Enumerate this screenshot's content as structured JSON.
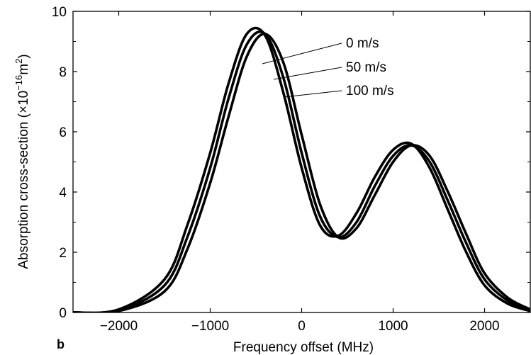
{
  "chart_data": {
    "type": "line",
    "xlabel": "Frequency offset (MHz)",
    "ylabel": "Absorption cross-section (×10",
    "ylabel_exp": "−16",
    "ylabel_unit": "m",
    "ylabel_unit_exp": "2",
    "ylabel_close": ")",
    "panel_label": "b",
    "xlim": [
      -2500,
      2500
    ],
    "ylim": [
      0,
      10
    ],
    "x_ticks": [
      -2000,
      -1000,
      0,
      1000,
      2000
    ],
    "x_tick_labels": [
      "−2000",
      "−1000",
      "0",
      "1000",
      "2000"
    ],
    "y_ticks": [
      0,
      2,
      4,
      6,
      8,
      10
    ],
    "y_tick_labels": [
      "0",
      "2",
      "4",
      "6",
      "8",
      "10"
    ],
    "series": [
      {
        "name": "0 m/s",
        "x": [
          -2500,
          -2000,
          -1500,
          -1250,
          -1000,
          -800,
          -600,
          -400,
          -200,
          0,
          200,
          400,
          600,
          800,
          1000,
          1200,
          1400,
          1600,
          1800,
          2000,
          2250,
          2500
        ],
        "y": [
          0.0,
          0.1,
          1.1,
          2.9,
          5.3,
          7.6,
          9.25,
          9.2,
          7.3,
          4.8,
          2.9,
          2.55,
          3.3,
          4.5,
          5.4,
          5.6,
          4.8,
          3.4,
          2.0,
          0.9,
          0.3,
          0.05
        ]
      },
      {
        "name": "50 m/s",
        "x": [
          -2500,
          -2000,
          -1500,
          -1250,
          -1000,
          -800,
          -600,
          -400,
          -200,
          0,
          200,
          400,
          600,
          800,
          1000,
          1200,
          1400,
          1600,
          1800,
          2000,
          2250,
          2500
        ],
        "y": [
          0.0,
          0.07,
          0.9,
          2.5,
          4.8,
          7.1,
          8.9,
          9.25,
          7.8,
          5.3,
          3.2,
          2.5,
          3.0,
          4.2,
          5.2,
          5.55,
          5.0,
          3.7,
          2.3,
          1.1,
          0.4,
          0.08
        ]
      },
      {
        "name": "100 m/s",
        "x": [
          -2500,
          -2000,
          -1500,
          -1250,
          -1000,
          -800,
          -600,
          -400,
          -200,
          0,
          200,
          400,
          600,
          800,
          1000,
          1200,
          1400,
          1600,
          1800,
          2000,
          2250,
          2500
        ],
        "y": [
          0.0,
          0.05,
          0.7,
          2.1,
          4.3,
          6.5,
          8.5,
          9.25,
          8.3,
          5.9,
          3.6,
          2.5,
          2.8,
          3.9,
          5.0,
          5.55,
          5.2,
          4.0,
          2.6,
          1.3,
          0.5,
          0.1
        ]
      }
    ],
    "annotations": [
      "0 m/s",
      "50 m/s",
      "100 m/s"
    ],
    "grid": false,
    "line_color": "#000000"
  }
}
